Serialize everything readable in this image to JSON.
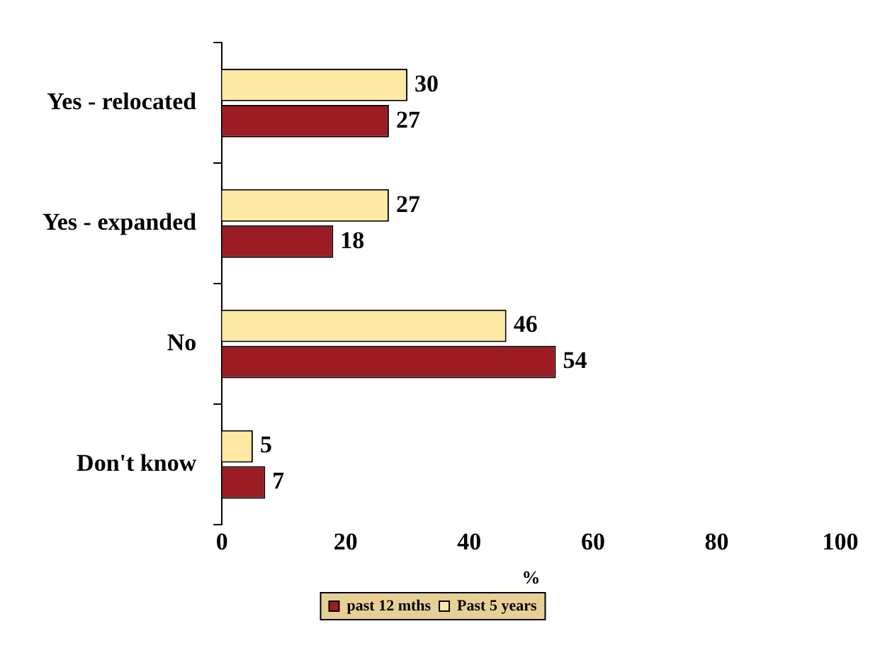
{
  "chart_data": {
    "type": "bar",
    "orientation": "horizontal",
    "categories": [
      "Yes - relocated",
      "Yes - expanded",
      "No",
      "Don't know"
    ],
    "series": [
      {
        "name": "Past 5 years",
        "color": "#fde9a4",
        "values": [
          30,
          27,
          46,
          5
        ]
      },
      {
        "name": "past 12 mths",
        "color": "#9c1c26",
        "values": [
          27,
          18,
          54,
          7
        ]
      }
    ],
    "xlabel": "%",
    "xlim": [
      0,
      100
    ],
    "xticks": [
      0,
      20,
      40,
      60,
      80,
      100
    ],
    "grid": false,
    "legend": "bottom",
    "data_labels": true
  }
}
